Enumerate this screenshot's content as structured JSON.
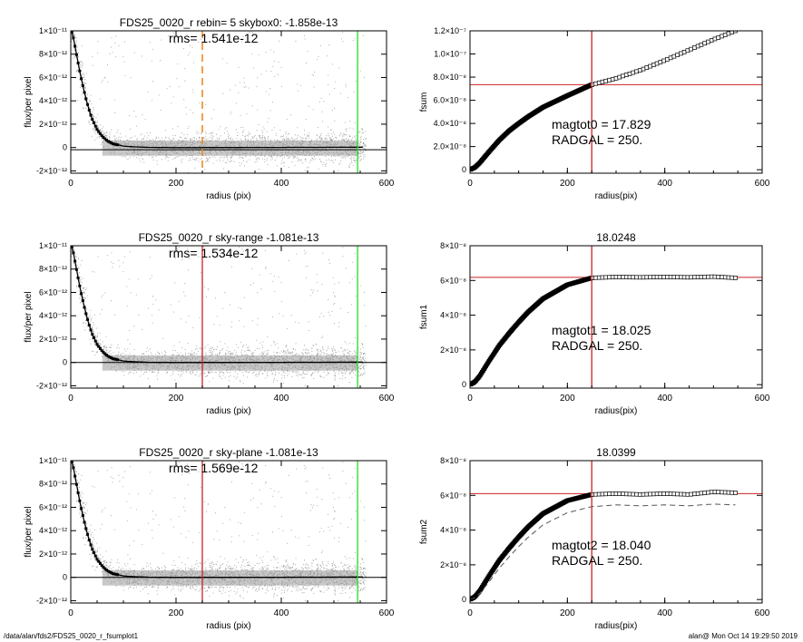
{
  "footer": {
    "path": "/data/alan/fds2/FDS25_0020_r_fsumplot1",
    "stamp": "alan@  Mon Oct 14 19:29:50 2019"
  },
  "colors": {
    "scatter": "#9a9a9a",
    "profile": "#000000",
    "red_line": "#cc2222",
    "green_line": "#22dd22",
    "orange_line": "#ee8822"
  },
  "chart_data": [
    {
      "id": "left1",
      "type": "scatter",
      "title": "FDS25_0020_r rebin= 5    skybox0: -1.858e-13",
      "annotation": "rms= 1.541e-12",
      "xlabel": "radius (pix)",
      "ylabel": "flux/per pixel",
      "xlim": [
        0,
        600
      ],
      "ylim": [
        -2.2e-12,
        1e-11
      ],
      "x_ticks": [
        "0",
        "200",
        "400",
        "600"
      ],
      "y_ticks": [
        "-2×10⁻¹²",
        "0",
        "2×10⁻¹²",
        "4×10⁻¹²",
        "6×10⁻¹²",
        "8×10⁻¹²",
        "1×10⁻¹¹"
      ],
      "y_tick_values": [
        -2e-12,
        0,
        2e-12,
        4e-12,
        6e-12,
        8e-12,
        1e-11
      ],
      "vlines": [
        {
          "x": 250,
          "color": "orange",
          "style": "dashed"
        },
        {
          "x": 545,
          "color": "green",
          "style": "solid"
        }
      ],
      "hlines": [
        {
          "y": -1.858e-13,
          "color": "black",
          "style": "solid"
        }
      ],
      "profile": {
        "r": [
          0,
          5,
          10,
          15,
          20,
          25,
          30,
          35,
          40,
          50,
          60,
          70,
          80,
          100,
          120,
          150,
          200,
          300,
          400,
          500,
          550
        ],
        "flux": [
          1.02e-11,
          9.4e-12,
          8.2e-12,
          7e-12,
          5.9e-12,
          4.9e-12,
          4e-12,
          3.2e-12,
          2.5e-12,
          1.55e-12,
          9.5e-13,
          5.5e-13,
          3.2e-13,
          1.2e-13,
          6e-14,
          1e-14,
          -1e-14,
          0,
          1e-14,
          2e-14,
          3e-14
        ]
      }
    },
    {
      "id": "right1",
      "type": "scatter",
      "title": "",
      "annotations": [
        "magtot0 =  17.829",
        "RADGAL =    250."
      ],
      "xlabel": "radius(pix)",
      "ylabel": "fsum",
      "xlim": [
        0,
        600
      ],
      "ylim": [
        -3e-09,
        1.2e-07
      ],
      "x_ticks": [
        "0",
        "200",
        "400",
        "600"
      ],
      "y_ticks": [
        "0",
        "2.0×10⁻⁸",
        "4.0×10⁻⁸",
        "6.0×10⁻⁸",
        "8.0×10⁻⁸",
        "1.0×10⁻⁷",
        "1.2×10⁻⁷"
      ],
      "y_tick_values": [
        0,
        2e-08,
        4e-08,
        6e-08,
        8e-08,
        1e-07,
        1.2e-07
      ],
      "vlines": [
        {
          "x": 250,
          "color": "red",
          "style": "solid"
        }
      ],
      "hlines": [
        {
          "y": 7.35e-08,
          "color": "red",
          "style": "solid"
        }
      ],
      "curve": {
        "r": [
          0,
          10,
          20,
          40,
          60,
          80,
          100,
          120,
          150,
          200,
          250,
          300,
          350,
          400,
          450,
          500,
          545
        ],
        "fsum": [
          0,
          2e-09,
          6e-09,
          1.6e-08,
          2.55e-08,
          3.35e-08,
          4e-08,
          4.6e-08,
          5.4e-08,
          6.4e-08,
          7.35e-08,
          7.9e-08,
          8.6e-08,
          9.45e-08,
          1.035e-07,
          1.125e-07,
          1.2e-07
        ]
      }
    },
    {
      "id": "left2",
      "type": "scatter",
      "title": "FDS25_0020_r sky-range -1.081e-13",
      "annotation": "rms= 1.534e-12",
      "xlabel": "radius (pix)",
      "ylabel": "flux/per pixel",
      "xlim": [
        0,
        600
      ],
      "ylim": [
        -2.2e-12,
        1e-11
      ],
      "x_ticks": [
        "0",
        "200",
        "400",
        "600"
      ],
      "y_ticks": [
        "-2×10⁻¹²",
        "0",
        "2×10⁻¹²",
        "4×10⁻¹²",
        "6×10⁻¹²",
        "8×10⁻¹²",
        "1×10⁻¹¹"
      ],
      "y_tick_values": [
        -2e-12,
        0,
        2e-12,
        4e-12,
        6e-12,
        8e-12,
        1e-11
      ],
      "vlines": [
        {
          "x": 250,
          "color": "red",
          "style": "solid"
        },
        {
          "x": 545,
          "color": "green",
          "style": "solid"
        }
      ],
      "hlines": [
        {
          "y": 0,
          "color": "black",
          "style": "solid"
        }
      ],
      "profile": {
        "r": [
          0,
          5,
          10,
          15,
          20,
          25,
          30,
          35,
          40,
          50,
          60,
          70,
          80,
          100,
          120,
          150,
          200,
          300,
          400,
          500,
          550
        ],
        "flux": [
          1.02e-11,
          9.4e-12,
          8.2e-12,
          7e-12,
          5.9e-12,
          4.9e-12,
          4e-12,
          3.2e-12,
          2.5e-12,
          1.55e-12,
          9.5e-13,
          5.5e-13,
          3.2e-13,
          1.2e-13,
          6e-14,
          1e-14,
          -1e-14,
          0,
          1e-14,
          2e-14,
          3e-14
        ]
      }
    },
    {
      "id": "right2",
      "type": "scatter",
      "title": "18.0248",
      "annotations": [
        "magtot1 =  18.025",
        "RADGAL =    250."
      ],
      "xlabel": "radius(pix)",
      "ylabel": "fsum1",
      "xlim": [
        0,
        600
      ],
      "ylim": [
        -2e-09,
        8e-08
      ],
      "x_ticks": [
        "0",
        "200",
        "400",
        "600"
      ],
      "y_ticks": [
        "0",
        "2×10⁻⁸",
        "4×10⁻⁸",
        "6×10⁻⁸",
        "8×10⁻⁸"
      ],
      "y_tick_values": [
        0,
        2e-08,
        4e-08,
        6e-08,
        8e-08
      ],
      "vlines": [
        {
          "x": 250,
          "color": "red",
          "style": "solid"
        }
      ],
      "hlines": [
        {
          "y": 6.18e-08,
          "color": "red",
          "style": "solid"
        }
      ],
      "curve": {
        "r": [
          0,
          10,
          20,
          40,
          60,
          80,
          100,
          120,
          150,
          200,
          250,
          300,
          350,
          400,
          450,
          500,
          545
        ],
        "fsum": [
          0,
          1.6e-09,
          5e-09,
          1.4e-08,
          2.25e-08,
          2.95e-08,
          3.6e-08,
          4.2e-08,
          4.95e-08,
          5.75e-08,
          6.15e-08,
          6.2e-08,
          6.18e-08,
          6.2e-08,
          6.18e-08,
          6.22e-08,
          6.15e-08
        ]
      }
    },
    {
      "id": "left3",
      "type": "scatter",
      "title": "FDS25_0020_r sky-plane -1.081e-13",
      "annotation": "rms= 1.569e-12",
      "xlabel": "radius (pix)",
      "ylabel": "flux/per pixel",
      "xlim": [
        0,
        600
      ],
      "ylim": [
        -2.2e-12,
        1e-11
      ],
      "x_ticks": [
        "0",
        "200",
        "400",
        "600"
      ],
      "y_ticks": [
        "-2×10⁻¹²",
        "0",
        "2×10⁻¹²",
        "4×10⁻¹²",
        "6×10⁻¹²",
        "8×10⁻¹²",
        "1×10⁻¹¹"
      ],
      "y_tick_values": [
        -2e-12,
        0,
        2e-12,
        4e-12,
        6e-12,
        8e-12,
        1e-11
      ],
      "vlines": [
        {
          "x": 250,
          "color": "red",
          "style": "solid"
        },
        {
          "x": 545,
          "color": "green",
          "style": "solid"
        }
      ],
      "hlines": [
        {
          "y": 0,
          "color": "black",
          "style": "solid"
        }
      ],
      "profile": {
        "r": [
          0,
          5,
          10,
          15,
          20,
          25,
          30,
          35,
          40,
          50,
          60,
          70,
          80,
          100,
          120,
          150,
          200,
          300,
          400,
          500,
          550
        ],
        "flux": [
          1.02e-11,
          9.4e-12,
          8.2e-12,
          7e-12,
          5.9e-12,
          4.9e-12,
          4e-12,
          3.2e-12,
          2.5e-12,
          1.55e-12,
          9.5e-13,
          5.5e-13,
          3.2e-13,
          1.2e-13,
          6e-14,
          1e-14,
          -1e-14,
          0,
          1e-14,
          2e-14,
          3e-14
        ]
      }
    },
    {
      "id": "right3",
      "type": "scatter",
      "title": "18.0399",
      "annotations": [
        "magtot2 =  18.040",
        "RADGAL =    250."
      ],
      "xlabel": "radius(pix)",
      "ylabel": "fsum2",
      "xlim": [
        0,
        600
      ],
      "ylim": [
        -2e-09,
        8e-08
      ],
      "x_ticks": [
        "0",
        "200",
        "400",
        "600"
      ],
      "y_ticks": [
        "0",
        "2×10⁻⁸",
        "4×10⁻⁸",
        "6×10⁻⁸",
        "8×10⁻⁸"
      ],
      "y_tick_values": [
        0,
        2e-08,
        4e-08,
        6e-08,
        8e-08
      ],
      "vlines": [
        {
          "x": 250,
          "color": "red",
          "style": "solid"
        }
      ],
      "hlines": [
        {
          "y": 6.1e-08,
          "color": "red",
          "style": "solid"
        }
      ],
      "curve": {
        "r": [
          0,
          10,
          20,
          40,
          60,
          80,
          100,
          120,
          150,
          200,
          250,
          300,
          350,
          400,
          450,
          500,
          545
        ],
        "fsum": [
          0,
          1.6e-09,
          5e-09,
          1.4e-08,
          2.25e-08,
          2.95e-08,
          3.6e-08,
          4.2e-08,
          4.95e-08,
          5.7e-08,
          6.05e-08,
          6.1e-08,
          6.05e-08,
          6.1e-08,
          6.05e-08,
          6.2e-08,
          6.15e-08
        ]
      },
      "curve2": {
        "r": [
          0,
          10,
          20,
          40,
          60,
          80,
          100,
          120,
          150,
          200,
          250,
          300,
          350,
          400,
          450,
          500,
          545
        ],
        "fsum": [
          0,
          1e-09,
          3.5e-09,
          1.05e-08,
          1.8e-08,
          2.45e-08,
          3.05e-08,
          3.6e-08,
          4.3e-08,
          5e-08,
          5.35e-08,
          5.45e-08,
          5.4e-08,
          5.45e-08,
          5.4e-08,
          5.5e-08,
          5.45e-08
        ]
      }
    }
  ]
}
